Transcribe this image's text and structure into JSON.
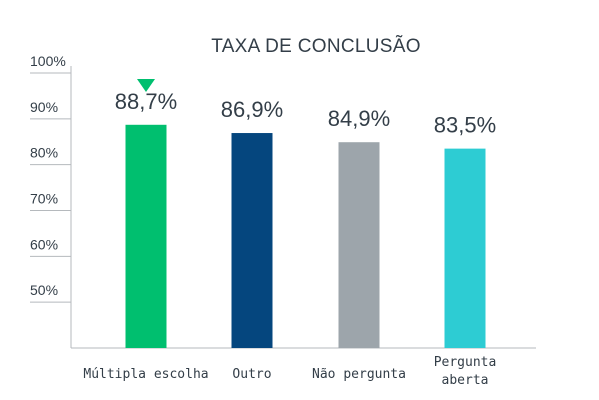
{
  "chart_data": {
    "type": "bar",
    "title": "TAXA DE CONCLUSÃO",
    "xlabel": "",
    "ylabel": "",
    "categories": [
      "Múltipla escolha",
      "Outro",
      "Não pergunta",
      "Pergunta aberta"
    ],
    "category_label_lines": [
      [
        "Múltipla escolha"
      ],
      [
        "Outro"
      ],
      [
        "Não pergunta"
      ],
      [
        "Pergunta",
        "aberta"
      ]
    ],
    "values": [
      88.7,
      86.9,
      84.9,
      83.5
    ],
    "value_labels": [
      "88,7%",
      "86,9%",
      "84,9%",
      "83,5%"
    ],
    "colors": [
      "#00bf6f",
      "#05467e",
      "#9da5ab",
      "#2dccd3"
    ],
    "ylim": [
      40,
      100
    ],
    "yticks": [
      50,
      60,
      70,
      80,
      90,
      100
    ],
    "ytick_labels": [
      "50%",
      "60%",
      "70%",
      "80%",
      "90%",
      "100%"
    ],
    "grid": false,
    "highlight": {
      "category_index": 0,
      "marker": "down-triangle-icon",
      "color": "#00bf6f"
    }
  }
}
